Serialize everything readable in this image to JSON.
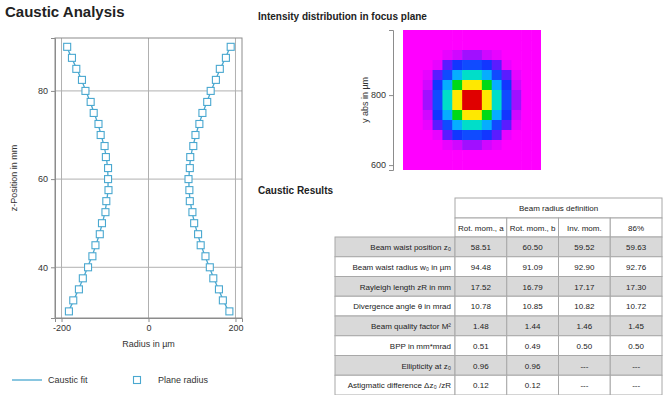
{
  "chart_data": [
    {
      "type": "scatter",
      "title": "Caustic Analysis",
      "x_label": "Radius in µm",
      "y_label": "z-Position in mm",
      "xlim": [
        -215,
        215
      ],
      "ylim": [
        28.5,
        92
      ],
      "xticks": [
        -200,
        0,
        200
      ],
      "yticks": [
        40,
        60,
        80
      ],
      "grid": true,
      "legend": "bottom",
      "series": [
        {
          "name": "Caustic fit",
          "type": "line",
          "color": "#4aa8d0",
          "line_style": "solid",
          "x": [
            -184,
            -172,
            -161,
            -150,
            -140,
            -130,
            -121,
            -113,
            -106,
            -100,
            -96,
            -93,
            -93,
            -94,
            -97,
            -102,
            -109,
            -116,
            -125,
            -134,
            -144,
            -154,
            -165,
            -177,
            -188,
            null,
            184,
            172,
            161,
            150,
            140,
            130,
            121,
            113,
            106,
            100,
            96,
            93,
            93,
            94,
            97,
            102,
            109,
            116,
            125,
            134,
            144,
            154,
            165,
            177,
            188
          ],
          "y": [
            30,
            32.5,
            35,
            37.5,
            40,
            42.5,
            45,
            47.5,
            50,
            52.5,
            55,
            57.5,
            60,
            62.5,
            65,
            67.5,
            70,
            72.5,
            75,
            77.5,
            80,
            82.5,
            85,
            87.5,
            90,
            null,
            30,
            32.5,
            35,
            37.5,
            40,
            42.5,
            45,
            47.5,
            50,
            52.5,
            55,
            57.5,
            60,
            62.5,
            65,
            67.5,
            70,
            72.5,
            75,
            77.5,
            80,
            82.5,
            85,
            87.5,
            90
          ]
        },
        {
          "name": "Plane radius",
          "type": "scatter",
          "color": "#4aa8d0",
          "marker": "square",
          "x": [
            -183,
            -173,
            -160,
            -151,
            -139,
            -129,
            -122,
            -112,
            -107,
            -99,
            -97,
            -92,
            -93,
            -93,
            -98,
            -101,
            -110,
            -115,
            -126,
            -133,
            -145,
            -153,
            -166,
            -176,
            -187,
            186,
            171,
            162,
            149,
            141,
            131,
            120,
            114,
            105,
            101,
            95,
            94,
            92,
            95,
            96,
            103,
            108,
            117,
            124,
            135,
            143,
            155,
            164,
            178,
            189
          ],
          "y": [
            30,
            32.5,
            35,
            37.5,
            40,
            42.5,
            45,
            47.5,
            50,
            52.5,
            55,
            57.5,
            60,
            62.5,
            65,
            67.5,
            70,
            72.5,
            75,
            77.5,
            80,
            82.5,
            85,
            87.5,
            90,
            30,
            32.5,
            35,
            37.5,
            40,
            42.5,
            45,
            47.5,
            50,
            52.5,
            55,
            57.5,
            60,
            62.5,
            65,
            67.5,
            70,
            72.5,
            75,
            77.5,
            80,
            82.5,
            85,
            87.5,
            90
          ]
        }
      ]
    },
    {
      "type": "heatmap",
      "title": "Intensity distribution in focus plane",
      "y_label": "y abs in µm",
      "ylim": [
        586,
        986
      ],
      "yticks": [
        600,
        800
      ],
      "tick_labels": "y",
      "zlim": [
        0,
        100
      ],
      "cells": [
        [
          0,
          0,
          0,
          0,
          0,
          0,
          0,
          0,
          0,
          0,
          0,
          0,
          0,
          0
        ],
        [
          0,
          0,
          0,
          0,
          0,
          0,
          0,
          0,
          0,
          0,
          0,
          0,
          0,
          0
        ],
        [
          0,
          0,
          0,
          0,
          0.1,
          0.2,
          0.4,
          0.4,
          0.2,
          0.1,
          0,
          0,
          0,
          0
        ],
        [
          0,
          0,
          0,
          0.1,
          0.7,
          2.1,
          3.7,
          3.7,
          2.1,
          0.7,
          0.1,
          0,
          0,
          0
        ],
        [
          0,
          0,
          0.1,
          0.7,
          3.7,
          11.1,
          19.2,
          19.2,
          11.1,
          3.7,
          0.7,
          0.1,
          0,
          0
        ],
        [
          0,
          0,
          0.2,
          2.1,
          11.1,
          33.3,
          57.7,
          57.7,
          33.3,
          11.1,
          2.1,
          0.2,
          0,
          0
        ],
        [
          0,
          0,
          0.4,
          3.7,
          19.2,
          57.7,
          100,
          100,
          57.7,
          19.2,
          3.7,
          0.4,
          0,
          0
        ],
        [
          0,
          0,
          0.4,
          3.7,
          19.2,
          57.7,
          100,
          100,
          57.7,
          19.2,
          3.7,
          0.4,
          0,
          0
        ],
        [
          0,
          0,
          0.2,
          2.1,
          11.1,
          33.3,
          57.7,
          57.7,
          33.3,
          11.1,
          2.1,
          0.2,
          0,
          0
        ],
        [
          0,
          0,
          0.1,
          0.7,
          3.7,
          11.1,
          19.2,
          19.2,
          11.1,
          3.7,
          0.7,
          0.1,
          0,
          0
        ],
        [
          0,
          0,
          0,
          0.1,
          0.7,
          2.1,
          3.7,
          3.7,
          2.1,
          0.7,
          0.1,
          0,
          0,
          0
        ],
        [
          0,
          0,
          0,
          0,
          0.1,
          0.2,
          0.4,
          0.4,
          0.2,
          0.1,
          0,
          0,
          0,
          0
        ],
        [
          0,
          0,
          0,
          0,
          0,
          0,
          0,
          0,
          0,
          0,
          0,
          0,
          0,
          0
        ],
        [
          0,
          0,
          0,
          0,
          0,
          0,
          0,
          0,
          0,
          0,
          0,
          0,
          0,
          0
        ]
      ]
    }
  ],
  "table": {
    "title": "Caustic Results",
    "group_header": "Beam radius definition",
    "columns": [
      "Rot. mom., a",
      "Rot. mom., b",
      "Inv. mom.",
      "86%"
    ],
    "rows": [
      {
        "label": "Beam waist position z₀",
        "values": [
          "58.51",
          "60.50",
          "59.52",
          "59.63"
        ]
      },
      {
        "label": "Beam waist radius w₀  in µm",
        "values": [
          "94.48",
          "91.09",
          "92.90",
          "92.76"
        ]
      },
      {
        "label": "Rayleigh length zR  in mm",
        "values": [
          "17.52",
          "16.79",
          "17.17",
          "17.30"
        ]
      },
      {
        "label": "Divergence angle θ in mrad",
        "values": [
          "10.78",
          "10.85",
          "10.82",
          "10.72"
        ]
      },
      {
        "label": "Beam quality factor M²",
        "values": [
          "1.48",
          "1.44",
          "1.46",
          "1.45"
        ]
      },
      {
        "label": "BPP in mm*mrad",
        "values": [
          "0.51",
          "0.49",
          "0.50",
          "0.50"
        ]
      },
      {
        "label": "Ellipticity at z₀",
        "values": [
          "0.96",
          "0.96",
          "---",
          "---"
        ]
      },
      {
        "label": "Astigmatic difference Δz₀ /zR",
        "values": [
          "0.12",
          "0.12",
          "---",
          "---"
        ]
      }
    ]
  }
}
